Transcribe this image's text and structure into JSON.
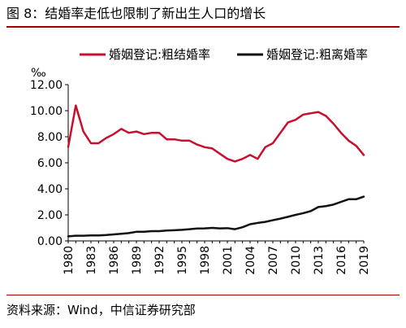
{
  "figure": {
    "title": "图 8：结婚率走低也限制了新出生人口的增长",
    "source": "资料来源：Wind，中信证券研究部"
  },
  "chart_data": {
    "type": "line",
    "yunit": "‰",
    "ylim": [
      0,
      12
    ],
    "yticks": [
      "0.00",
      "2.00",
      "4.00",
      "6.00",
      "8.00",
      "10.00",
      "12.00"
    ],
    "xticks": [
      "1980",
      "1983",
      "1986",
      "1989",
      "1992",
      "1995",
      "1998",
      "2001",
      "2004",
      "2007",
      "2010",
      "2013",
      "2016",
      "2019"
    ],
    "grid": false,
    "legend": "top",
    "x": [
      1980,
      1981,
      1982,
      1983,
      1984,
      1985,
      1986,
      1987,
      1988,
      1989,
      1990,
      1991,
      1992,
      1993,
      1994,
      1995,
      1996,
      1997,
      1998,
      1999,
      2000,
      2001,
      2002,
      2003,
      2004,
      2005,
      2006,
      2007,
      2008,
      2009,
      2010,
      2011,
      2012,
      2013,
      2014,
      2015,
      2016,
      2017,
      2018,
      2019
    ],
    "series": [
      {
        "name": "婚姻登记:粗结婚率",
        "color": "#c8102e",
        "values": [
          7.2,
          10.4,
          8.4,
          7.5,
          7.5,
          7.9,
          8.2,
          8.6,
          8.3,
          8.4,
          8.2,
          8.3,
          8.3,
          7.8,
          7.8,
          7.7,
          7.7,
          7.4,
          7.2,
          7.1,
          6.7,
          6.3,
          6.1,
          6.3,
          6.6,
          6.3,
          7.2,
          7.5,
          8.3,
          9.1,
          9.3,
          9.7,
          9.8,
          9.9,
          9.6,
          9.0,
          8.3,
          7.7,
          7.3,
          6.6
        ]
      },
      {
        "name": "婚姻登记:粗离婚率",
        "color": "#111111",
        "values": [
          0.35,
          0.4,
          0.4,
          0.42,
          0.42,
          0.45,
          0.5,
          0.55,
          0.6,
          0.7,
          0.7,
          0.75,
          0.75,
          0.8,
          0.82,
          0.85,
          0.9,
          0.95,
          0.96,
          1.0,
          0.96,
          0.98,
          0.9,
          1.05,
          1.28,
          1.38,
          1.46,
          1.59,
          1.71,
          1.85,
          2.0,
          2.13,
          2.29,
          2.6,
          2.67,
          2.79,
          3.0,
          3.2,
          3.2,
          3.4
        ]
      }
    ]
  }
}
